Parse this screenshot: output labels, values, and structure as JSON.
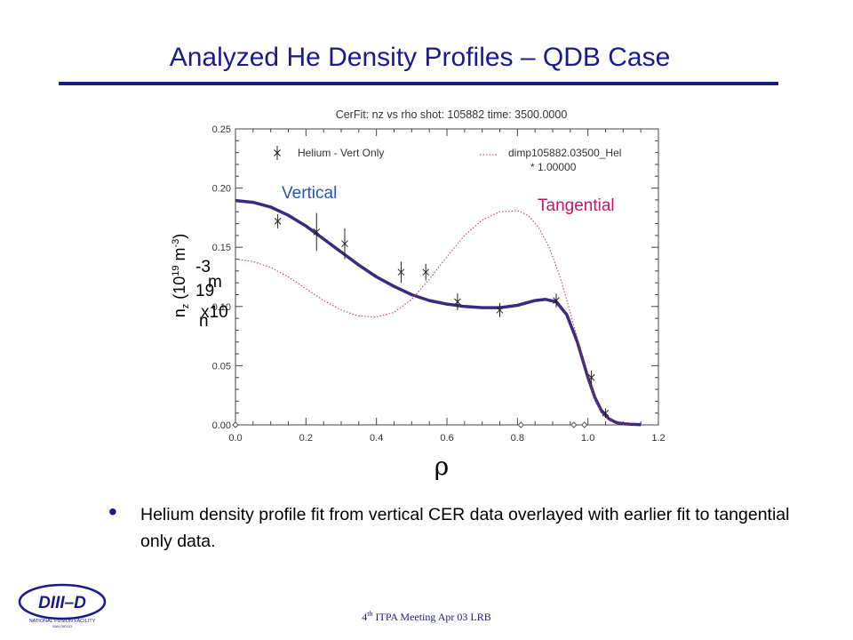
{
  "slide": {
    "title": "Analyzed  He Density Profiles – QDB  Case",
    "bullet": "Helium density profile fit from vertical CER data overlayed with earlier fit to tangential only data.",
    "footer_ordinal": "4",
    "footer_ordinal_suffix": "th",
    "footer_text": " ITPA Meeting  Apr 03  LRB",
    "logo_text": "DIII–D",
    "logo_subtext": "NATIONAL FUSION FACILITY",
    "logo_subtext2": "SAN DIEGO"
  },
  "chart_data": {
    "type": "line",
    "title": "CerFit:   nz vs rho   shot:  105882   time:  3500.0000",
    "xlabel": "ρ",
    "ylabel_main": "n",
    "ylabel_sub": "z",
    "ylabel_mid": " (10",
    "ylabel_sup": "19",
    "ylabel_unit": " m",
    "ylabel_unit_sup": "-3",
    "ylabel_end": ")",
    "ylabel_garbled": [
      "-3",
      "m",
      "19",
      "x10",
      "n"
    ],
    "xlim": [
      0.0,
      1.2
    ],
    "ylim": [
      0.0,
      0.25
    ],
    "xticks": [
      0.0,
      0.2,
      0.4,
      0.6,
      0.8,
      1.0,
      1.2
    ],
    "xtick_labels": [
      "0.0",
      "0.2",
      "0.4",
      "0.6",
      "0.8",
      "1.0",
      "1.2"
    ],
    "yticks": [
      0.0,
      0.05,
      0.1,
      0.15,
      0.2,
      0.25
    ],
    "ytick_labels": [
      "0.00",
      "0.05",
      "0.10",
      "0.15",
      "0.20",
      "0.25"
    ],
    "legend": [
      {
        "label": "Helium - Vert Only"
      },
      {
        "label": "dimp105882.03500_Hel",
        "label2": "* 1.00000"
      }
    ],
    "annotations": [
      {
        "text": "Vertical",
        "color": "#2255bb"
      },
      {
        "text": "Tangential",
        "color": "#cc1166"
      }
    ],
    "series": [
      {
        "name": "Helium - Vert Only",
        "style": "solid",
        "color": "#3a2a80",
        "x": [
          0.0,
          0.05,
          0.1,
          0.15,
          0.2,
          0.25,
          0.3,
          0.35,
          0.4,
          0.45,
          0.5,
          0.55,
          0.6,
          0.65,
          0.7,
          0.75,
          0.8,
          0.85,
          0.88,
          0.91,
          0.94,
          0.97,
          1.0,
          1.02,
          1.04,
          1.06,
          1.08,
          1.1,
          1.12,
          1.15
        ],
        "y": [
          0.1895,
          0.188,
          0.184,
          0.177,
          0.168,
          0.157,
          0.146,
          0.135,
          0.125,
          0.117,
          0.11,
          0.105,
          0.102,
          0.1,
          0.099,
          0.099,
          0.101,
          0.105,
          0.106,
          0.104,
          0.093,
          0.07,
          0.04,
          0.023,
          0.011,
          0.005,
          0.002,
          0.001,
          0.0005,
          0.0002
        ]
      },
      {
        "name": "dimp105882.03500_Hel",
        "style": "dotted",
        "color": "#cc3333",
        "x": [
          0.0,
          0.05,
          0.1,
          0.15,
          0.2,
          0.25,
          0.3,
          0.35,
          0.4,
          0.45,
          0.5,
          0.55,
          0.6,
          0.65,
          0.7,
          0.75,
          0.8,
          0.83,
          0.86,
          0.89,
          0.92,
          0.95,
          0.98,
          1.0,
          1.02,
          1.04,
          1.06,
          1.08,
          1.1,
          1.12
        ],
        "y": [
          0.14,
          0.138,
          0.133,
          0.125,
          0.115,
          0.105,
          0.097,
          0.092,
          0.091,
          0.095,
          0.106,
          0.123,
          0.142,
          0.16,
          0.173,
          0.18,
          0.181,
          0.177,
          0.167,
          0.15,
          0.126,
          0.095,
          0.062,
          0.04,
          0.022,
          0.01,
          0.004,
          0.0015,
          0.0005,
          0.0002
        ]
      }
    ],
    "data_points": {
      "x": [
        0.12,
        0.23,
        0.31,
        0.47,
        0.54,
        0.63,
        0.75,
        0.91,
        1.01,
        1.05
      ],
      "y": [
        0.172,
        0.163,
        0.153,
        0.129,
        0.129,
        0.104,
        0.097,
        0.105,
        0.04,
        0.01
      ],
      "err": [
        0.006,
        0.016,
        0.013,
        0.009,
        0.007,
        0.007,
        0.006,
        0.006,
        0.006,
        0.004
      ]
    },
    "diamond_markers_x": [
      0.0,
      0.81,
      0.96,
      0.99
    ]
  }
}
